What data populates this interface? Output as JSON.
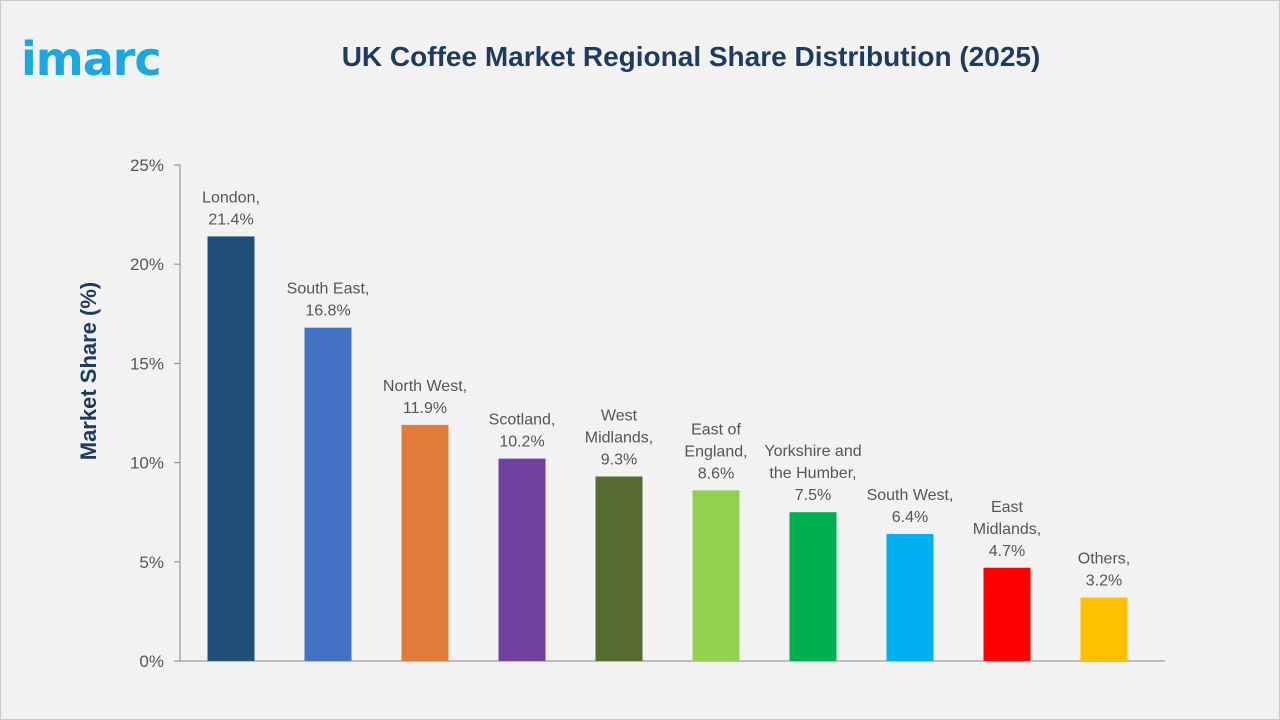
{
  "logo": {
    "text": "imarc"
  },
  "chart_data": {
    "type": "bar",
    "title": "UK Coffee Market Regional Share Distribution (2025)",
    "ylabel": "Market Share (%)",
    "xlabel": "",
    "ylim": [
      0,
      25
    ],
    "yticks": [
      "0%",
      "5%",
      "10%",
      "15%",
      "20%",
      "25%"
    ],
    "ytick_values": [
      0,
      5,
      10,
      15,
      20,
      25
    ],
    "grid": false,
    "categories": [
      "London",
      "South East",
      "North West",
      "Scotland",
      "West Midlands",
      "East of England",
      "Yorkshire and the Humber",
      "South West",
      "East Midlands",
      "Others"
    ],
    "values": [
      21.4,
      16.8,
      11.9,
      10.2,
      9.3,
      8.6,
      7.5,
      6.4,
      4.7,
      3.2
    ],
    "data_labels": [
      [
        "London,",
        "21.4%"
      ],
      [
        "South East,",
        "16.8%"
      ],
      [
        "North West,",
        "11.9%"
      ],
      [
        "Scotland,",
        "10.2%"
      ],
      [
        "West",
        "Midlands,",
        "9.3%"
      ],
      [
        "East of",
        "England,",
        "8.6%"
      ],
      [
        "Yorkshire and",
        "the Humber,",
        "7.5%"
      ],
      [
        "South West,",
        "6.4%"
      ],
      [
        "East",
        "Midlands,",
        "4.7%"
      ],
      [
        "Others,",
        "3.2%"
      ]
    ],
    "colors": [
      "#1f4e79",
      "#4472c4",
      "#e07b39",
      "#7040a0",
      "#556b2f",
      "#92d050",
      "#00b050",
      "#00b0f0",
      "#ff0000",
      "#ffc000"
    ]
  }
}
